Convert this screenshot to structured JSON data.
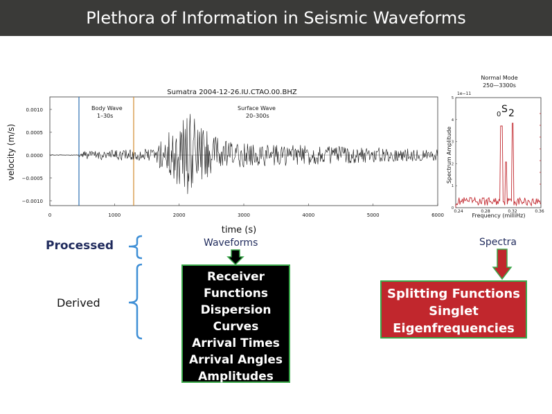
{
  "slide": {
    "title": "Plethora of Information in Seismic Waveforms"
  },
  "waveform_plot": {
    "title": "Sumatra 2004-12-26.IU.CTAO.00.BHZ",
    "ylabel": "velocity (m/s)",
    "xlabel": "time (s)",
    "x_ticks": [
      "0",
      "1000",
      "2000",
      "3000",
      "4000",
      "5000",
      "6000"
    ],
    "y_ticks": [
      "0.0010",
      "0.0005",
      "0.0000",
      "−0.0005",
      "−0.0010"
    ],
    "body_wave_label": "Body Wave",
    "body_wave_range": "1–30s",
    "surface_wave_label": "Surface Wave",
    "surface_wave_range": "20–300s",
    "body_marker_color": "#2b6fb0",
    "surface_marker_color": "#d08a2c"
  },
  "spectrum_plot": {
    "title_line1": "Normal Mode",
    "title_line2": "250—3300s",
    "scale_label": "1e−11",
    "ylabel": "Spectrum Amplitude",
    "xlabel": "Frequency (milliHz)",
    "x_ticks": [
      "0.24",
      "0.28",
      "0.32",
      "0.36"
    ],
    "y_ticks": [
      "5",
      "4",
      "3",
      "2",
      "1",
      "0"
    ],
    "mode_label_pre": "0",
    "mode_label_main": "S",
    "mode_label_sub": "2",
    "line_color": "#c1272d"
  },
  "labels": {
    "processed": "Processed",
    "derived": "Derived",
    "waveforms": "Waveforms",
    "spectra": "Spectra"
  },
  "waveform_products": [
    "Receiver",
    "Functions",
    "Dispersion",
    "Curves",
    "Arrival Times",
    "Arrival Angles",
    "Amplitudes"
  ],
  "spectra_products": [
    "Splitting Functions",
    "Singlet",
    "Eigenfrequencies"
  ],
  "colors": {
    "title_bar": "#3a3a38",
    "label_blue": "#1f2a5c",
    "bracket_blue": "#3f8fd6",
    "red_box": "#c1272d",
    "green_border": "#3aa84a"
  }
}
